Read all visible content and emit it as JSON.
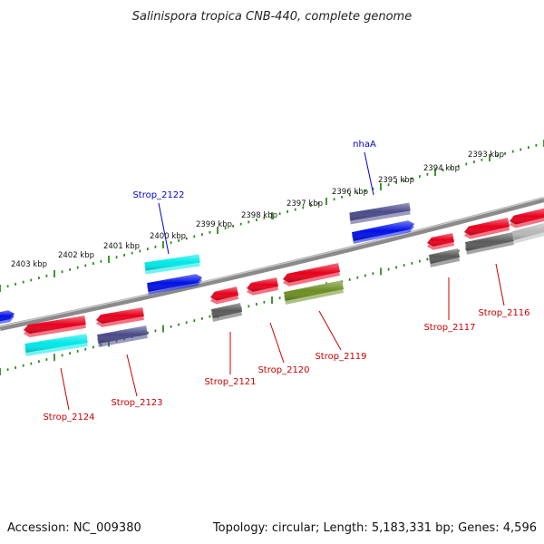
{
  "title": "Salinispora tropica CNB-440, complete genome",
  "footer": {
    "accession": "Accession: NC_009380",
    "summary": "Topology: circular; Length: 5,183,331 bp; Genes: 4,596"
  },
  "colors": {
    "backbone": "#8a8a8a",
    "tick": "#2e8b1f",
    "label_red": "#cc0000",
    "label_blue": "#0000cc",
    "red": "#e8001c",
    "blue": "#0010e6",
    "cyan": "#00e8e8",
    "slate": "#4a4a8a",
    "gray": "#5a5a5a",
    "olive": "#6b8e23",
    "lightgray": "#b8b8b8"
  },
  "kbp_ticks": [
    "2393 kbp",
    "2394 kbp",
    "2395 kbp",
    "2396 kbp",
    "2397 kbp",
    "2398 kbp",
    "2399 kbp",
    "2400 kbp",
    "2401 kbp",
    "2402 kbp",
    "2403 kbp"
  ],
  "gene_labels": {
    "nhaA": "nhaA",
    "Strop_2122": "Strop_2122",
    "Strop_2124": "Strop_2124",
    "Strop_2123": "Strop_2123",
    "Strop_2121": "Strop_2121",
    "Strop_2120": "Strop_2120",
    "Strop_2119": "Strop_2119",
    "Strop_2117": "Strop_2117",
    "Strop_2116": "Strop_2116"
  }
}
